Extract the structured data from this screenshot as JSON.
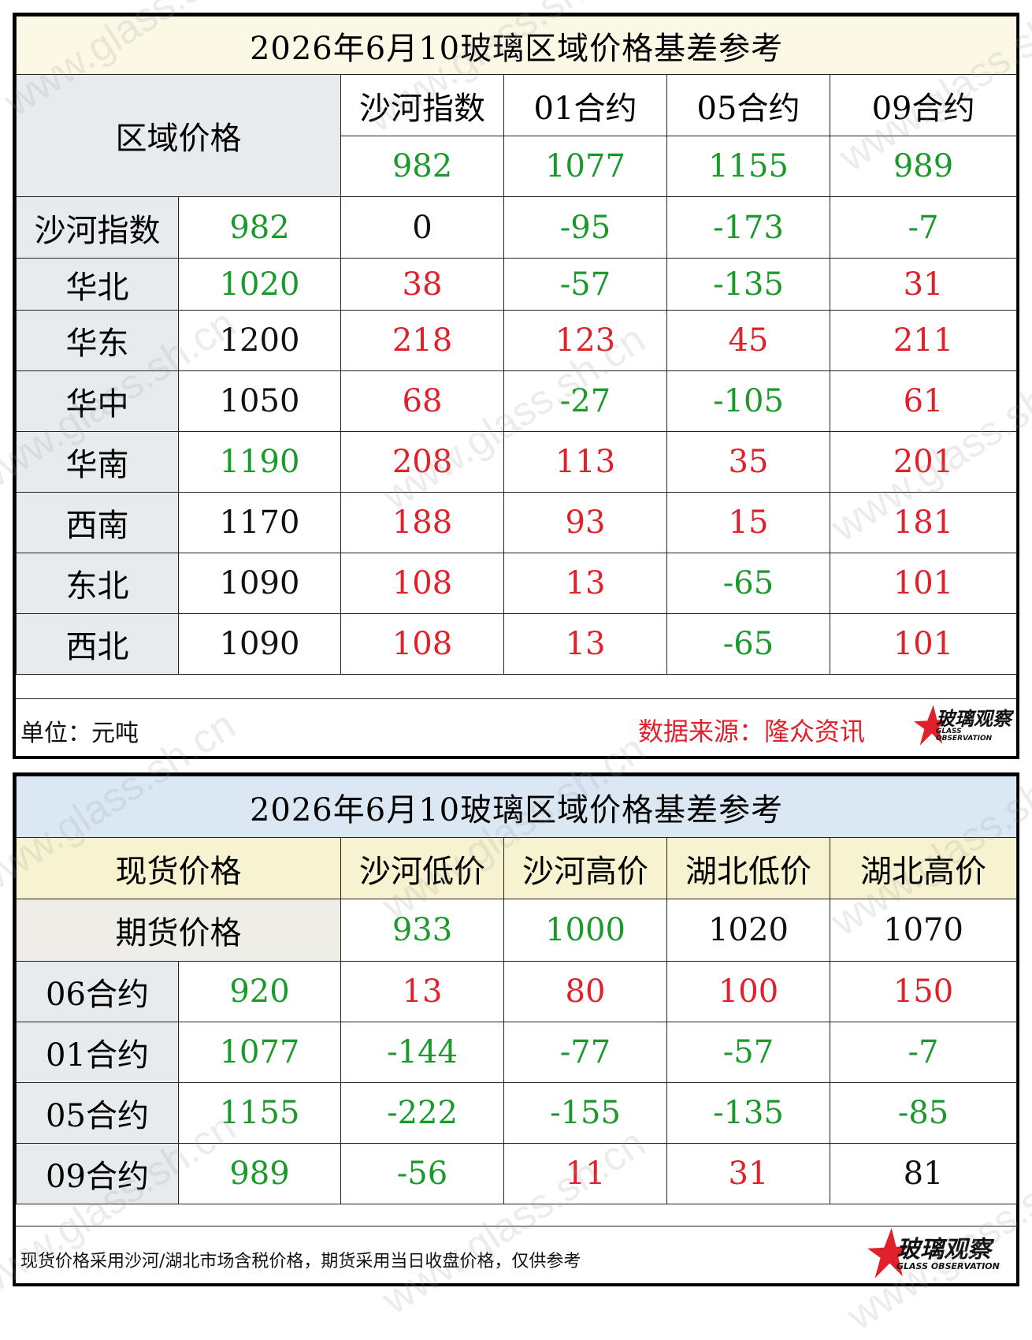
{
  "table1": {
    "title": "2026年6月10玻璃区域价格基差参考",
    "corner_label": "区域价格",
    "columns": [
      "沙河指数",
      "01合约",
      "05合约",
      "09合约"
    ],
    "column_prices": [
      "982",
      "1077",
      "1155",
      "989"
    ],
    "rows": [
      {
        "region": "沙河指数",
        "price": "982",
        "values": [
          "0",
          "-95",
          "-173",
          "-7"
        ]
      },
      {
        "region": "华北",
        "price": "1020",
        "values": [
          "38",
          "-57",
          "-135",
          "31"
        ]
      },
      {
        "region": "华东",
        "price": "1200",
        "values": [
          "218",
          "123",
          "45",
          "211"
        ]
      },
      {
        "region": "华中",
        "price": "1050",
        "values": [
          "68",
          "-27",
          "-105",
          "61"
        ]
      },
      {
        "region": "华南",
        "price": "1190",
        "values": [
          "208",
          "113",
          "35",
          "201"
        ]
      },
      {
        "region": "西南",
        "price": "1170",
        "values": [
          "188",
          "93",
          "15",
          "181"
        ]
      },
      {
        "region": "东北",
        "price": "1090",
        "values": [
          "108",
          "13",
          "-65",
          "101"
        ]
      },
      {
        "region": "西北",
        "price": "1090",
        "values": [
          "108",
          "13",
          "-65",
          "101"
        ]
      }
    ],
    "unit_text": "单位：元吨",
    "source_text": "数据来源：隆众资讯"
  },
  "table2": {
    "title": "2026年6月10玻璃区域价格基差参考",
    "spot_label": "现货价格",
    "futures_label": "期货价格",
    "columns": [
      "沙河低价",
      "沙河高价",
      "湖北低价",
      "湖北高价"
    ],
    "column_prices": [
      "933",
      "1000",
      "1020",
      "1070"
    ],
    "rows": [
      {
        "contract": "06合约",
        "price": "920",
        "values": [
          "13",
          "80",
          "100",
          "150"
        ]
      },
      {
        "contract": "01合约",
        "price": "1077",
        "values": [
          "-144",
          "-77",
          "-57",
          "-7"
        ]
      },
      {
        "contract": "05合约",
        "price": "1155",
        "values": [
          "-222",
          "-155",
          "-135",
          "-85"
        ]
      },
      {
        "contract": "09合约",
        "price": "989",
        "values": [
          "-56",
          "11",
          "31",
          "81"
        ]
      }
    ],
    "note_text": "现货价格采用沙河/湖北市场含税价格，期货采用当日收盘价格，仅供参考"
  },
  "logo": {
    "name": "玻璃观察",
    "subtitle": "GLASS OBSERVATION"
  },
  "watermark": "www.glass.sh.cn",
  "colors": {
    "negative": "#1a9a2a",
    "positive": "#e0202a",
    "neutral": "#111111",
    "accent": "#e0202a"
  }
}
